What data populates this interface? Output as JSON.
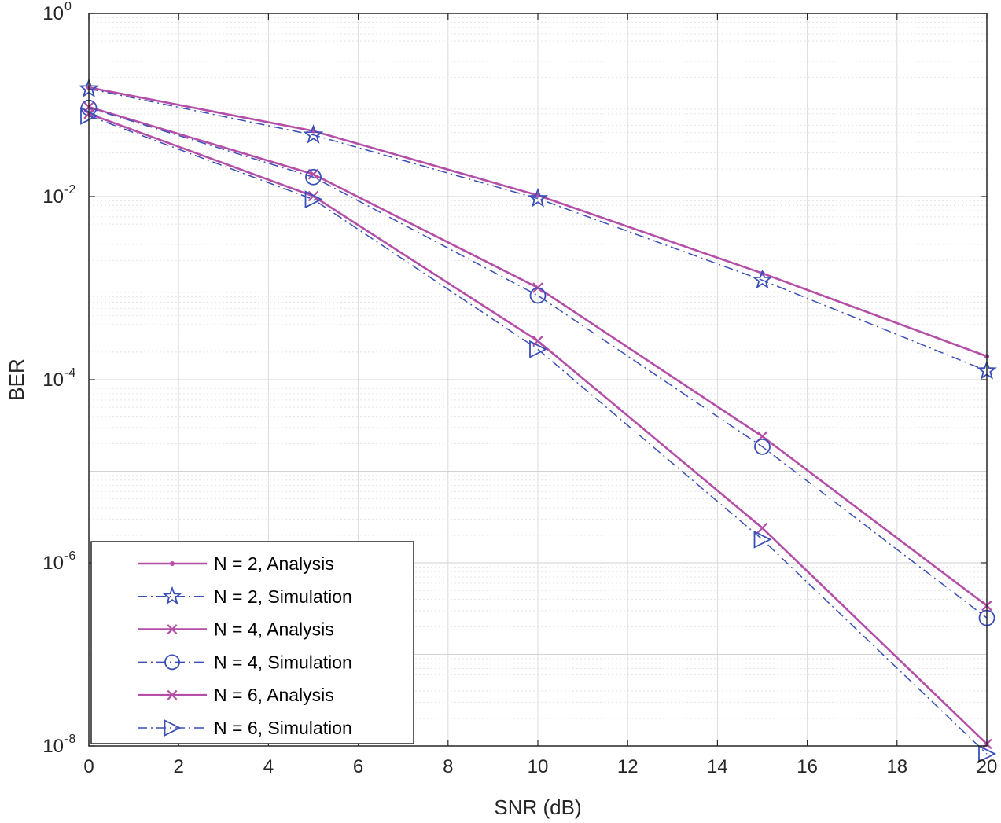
{
  "chart_data": {
    "type": "line",
    "title": "",
    "xlabel": "SNR (dB)",
    "ylabel": "BER",
    "yscale": "log",
    "xlim": [
      0,
      20
    ],
    "ylim": [
      1e-08,
      1
    ],
    "x_ticks": [
      0,
      2,
      4,
      6,
      8,
      10,
      12,
      14,
      16,
      18,
      20
    ],
    "y_ticks": [
      {
        "value": 1,
        "base": "10",
        "exp": "0"
      },
      {
        "value": 0.01,
        "base": "10",
        "exp": "-2"
      },
      {
        "value": 0.0001,
        "base": "10",
        "exp": "-4"
      },
      {
        "value": 1e-06,
        "base": "10",
        "exp": "-6"
      },
      {
        "value": 1e-08,
        "base": "10",
        "exp": "-8"
      }
    ],
    "grid": true,
    "legend_position": "bottom-left",
    "colors": {
      "analysis": "#b44ea7",
      "simulation": "#3a4fb8"
    },
    "series": [
      {
        "name": "N = 2, Analysis",
        "style": "solid",
        "marker": "dot",
        "color": "#b44ea7",
        "x": [
          0,
          5,
          10,
          15,
          20
        ],
        "values": [
          0.155,
          0.052,
          0.0103,
          0.00145,
          0.00018
        ]
      },
      {
        "name": "N = 2, Simulation",
        "style": "dashdot",
        "marker": "star",
        "color": "#3a4fb8",
        "x": [
          0,
          5,
          10,
          15,
          20
        ],
        "values": [
          0.15,
          0.047,
          0.0095,
          0.00122,
          0.000125
        ]
      },
      {
        "name": "N = 4, Analysis",
        "style": "solid",
        "marker": "x",
        "color": "#b44ea7",
        "x": [
          0,
          5,
          10,
          15,
          20
        ],
        "values": [
          0.095,
          0.0175,
          0.00101,
          2.4e-05,
          3.4e-07
        ]
      },
      {
        "name": "N = 4, Simulation",
        "style": "dashdot",
        "marker": "circle",
        "color": "#3a4fb8",
        "x": [
          0,
          5,
          10,
          15,
          20
        ],
        "values": [
          0.093,
          0.0163,
          0.00083,
          1.85e-05,
          2.5e-07
        ]
      },
      {
        "name": "N = 6, Analysis",
        "style": "solid",
        "marker": "x",
        "color": "#b44ea7",
        "x": [
          0,
          5,
          10,
          15,
          20
        ],
        "values": [
          0.08,
          0.0101,
          0.000265,
          2.4e-06,
          1.05e-08
        ]
      },
      {
        "name": "N = 6, Simulation",
        "style": "dashdot",
        "marker": "triangle-right",
        "color": "#3a4fb8",
        "x": [
          0,
          5,
          10,
          15,
          20
        ],
        "values": [
          0.076,
          0.0093,
          0.000215,
          1.8e-06,
          8.2e-09
        ]
      }
    ]
  }
}
